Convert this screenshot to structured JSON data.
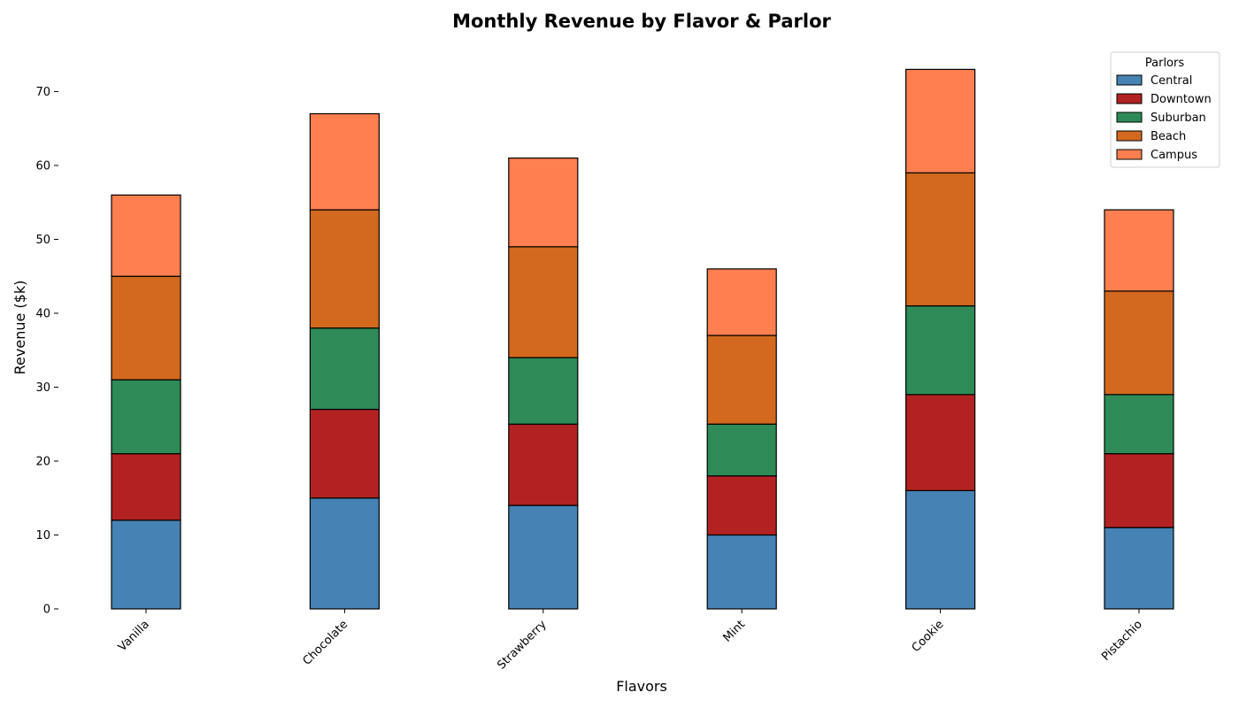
{
  "chart_data": {
    "type": "bar",
    "stacked": true,
    "title": "Monthly Revenue by Flavor & Parlor",
    "xlabel": "Flavors",
    "ylabel": "Revenue ($k)",
    "ylim": [
      0,
      77
    ],
    "yticks": [
      0,
      10,
      20,
      30,
      40,
      50,
      60,
      70
    ],
    "grid": false,
    "legend": {
      "title": "Parlors",
      "placement": "top-right"
    },
    "categories": [
      "Vanilla",
      "Chocolate",
      "Strawberry",
      "Mint",
      "Cookie",
      "Pistachio"
    ],
    "series": [
      {
        "name": "Central",
        "color": "#4682b4",
        "values": [
          12,
          15,
          14,
          10,
          16,
          11
        ]
      },
      {
        "name": "Downtown",
        "color": "#b22222",
        "values": [
          9,
          12,
          11,
          8,
          13,
          10
        ]
      },
      {
        "name": "Suburban",
        "color": "#2e8b57",
        "values": [
          10,
          11,
          9,
          7,
          12,
          8
        ]
      },
      {
        "name": "Beach",
        "color": "#d2691e",
        "values": [
          14,
          16,
          15,
          12,
          18,
          14
        ]
      },
      {
        "name": "Campus",
        "color": "#ff7f50",
        "values": [
          11,
          13,
          12,
          9,
          14,
          11
        ]
      }
    ]
  }
}
